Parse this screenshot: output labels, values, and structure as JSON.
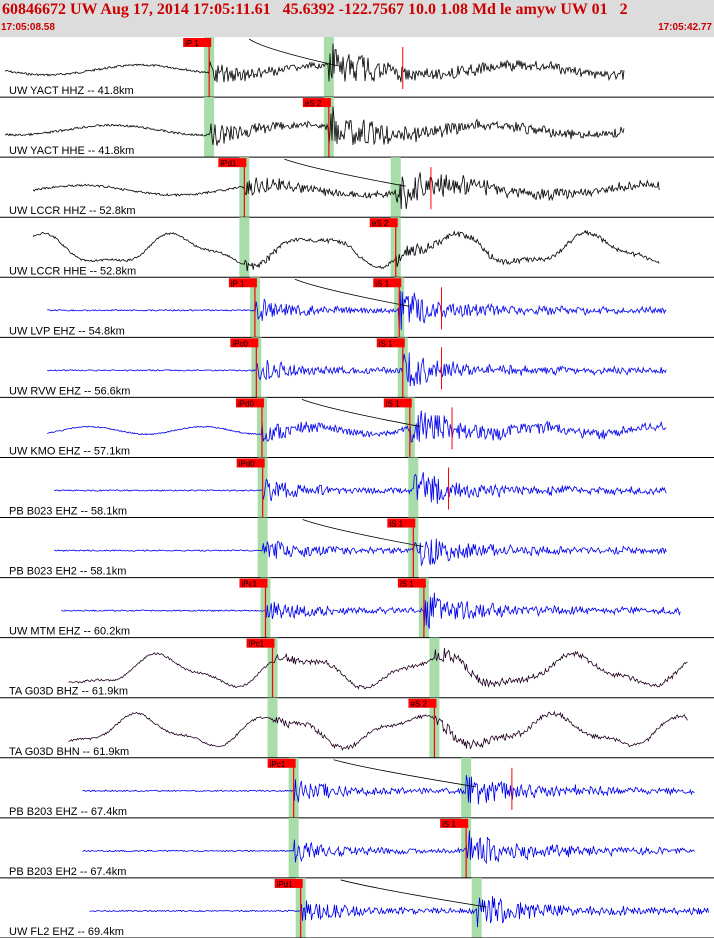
{
  "header": {
    "title": "60846672 UW Aug 17, 2014 17:05:11.61   45.6392 -122.7567 10.0 1.08 Md le amyw UW 01   2",
    "start_time": "17:05:08.58",
    "end_time": "17:05:42.77"
  },
  "chart_data": {
    "type": "line",
    "title": "60846672 UW Aug 17, 2014 17:05:11.61   45.6392 -122.7567 10.0 1.08 Md le amyw UW 01   2",
    "x_range": [
      "17:05:08.58",
      "17:05:42.77"
    ],
    "colors": {
      "velocity": "#0000ee",
      "broadband": "#220022",
      "pick": "#ff0000",
      "pick_window": "#a8dca8",
      "separator": "#000000"
    },
    "traces": [
      {
        "label": "UW YACT HHZ -- 41.8km",
        "color": "#000000",
        "kind": "bb",
        "start": 0.0,
        "end": 0.88,
        "p_time": 0.29,
        "s_time": 0.46,
        "picks": [
          {
            "label": "iP 1",
            "t": 0.29
          }
        ],
        "spikes": [
          0.565
        ]
      },
      {
        "label": "UW YACT HHE -- 41.8km",
        "color": "#000000",
        "kind": "bb",
        "start": 0.0,
        "end": 0.88,
        "p_time": 0.29,
        "s_time": 0.46,
        "picks": [
          {
            "label": "eS 2",
            "t": 0.46
          }
        ],
        "spikes": []
      },
      {
        "label": "UW LCCR HHZ -- 52.8km",
        "color": "#000000",
        "kind": "bb",
        "start": 0.04,
        "end": 0.93,
        "p_time": 0.34,
        "s_time": 0.555,
        "picks": [
          {
            "label": "iPd1",
            "t": 0.34
          }
        ],
        "spikes": [
          0.605
        ]
      },
      {
        "label": "UW LCCR HHE -- 52.8km",
        "color": "#000000",
        "kind": "lp",
        "start": 0.04,
        "end": 0.93,
        "p_time": 0.34,
        "s_time": 0.555,
        "picks": [
          {
            "label": "eS 2",
            "t": 0.555
          }
        ],
        "spikes": []
      },
      {
        "label": "UW LVP EHZ -- 54.8km",
        "color": "#0000ee",
        "kind": "sp",
        "start": 0.06,
        "end": 0.94,
        "p_time": 0.355,
        "s_time": 0.56,
        "picks": [
          {
            "label": "iP 1",
            "t": 0.355
          },
          {
            "label": "iS 1",
            "t": 0.56
          }
        ],
        "spikes": [
          0.62
        ]
      },
      {
        "label": "UW RVW EHZ -- 56.6km",
        "color": "#0000ee",
        "kind": "sp",
        "start": 0.06,
        "end": 0.94,
        "p_time": 0.357,
        "s_time": 0.565,
        "picks": [
          {
            "label": "iPc0",
            "t": 0.357
          },
          {
            "label": "iS 1",
            "t": 0.565
          }
        ],
        "spikes": [
          0.62
        ]
      },
      {
        "label": "UW KMO EHZ -- 57.1km",
        "color": "#0000ee",
        "kind": "sm",
        "start": 0.06,
        "end": 0.94,
        "p_time": 0.365,
        "s_time": 0.575,
        "picks": [
          {
            "label": "iPd0",
            "t": 0.365
          },
          {
            "label": "iS 1",
            "t": 0.575
          }
        ],
        "spikes": [
          0.635
        ]
      },
      {
        "label": "PB B023 EHZ -- 58.1km",
        "color": "#0000ee",
        "kind": "sp",
        "start": 0.07,
        "end": 0.94,
        "p_time": 0.366,
        "s_time": 0.58,
        "picks": [
          {
            "label": "iPd0",
            "t": 0.366
          }
        ],
        "spikes": [
          0.63
        ]
      },
      {
        "label": "PB B023 EH2 -- 58.1km",
        "color": "#0000ee",
        "kind": "sp",
        "start": 0.07,
        "end": 0.94,
        "p_time": 0.366,
        "s_time": 0.58,
        "picks": [
          {
            "label": "iS 1",
            "t": 0.58
          }
        ],
        "spikes": []
      },
      {
        "label": "UW MTM EHZ -- 60.2km",
        "color": "#0000ee",
        "kind": "sp",
        "start": 0.08,
        "end": 0.96,
        "p_time": 0.37,
        "s_time": 0.595,
        "picks": [
          {
            "label": "iPc1",
            "t": 0.37
          },
          {
            "label": "iS 1",
            "t": 0.595
          }
        ],
        "spikes": []
      },
      {
        "label": "TA G03D BHZ -- 61.9km",
        "color": "#220022",
        "kind": "lp",
        "start": 0.09,
        "end": 0.97,
        "p_time": 0.38,
        "s_time": 0.61,
        "picks": [
          {
            "label": "iPc1",
            "t": 0.38
          }
        ],
        "spikes": []
      },
      {
        "label": "TA G03D BHN -- 61.9km",
        "color": "#220022",
        "kind": "lp",
        "start": 0.09,
        "end": 0.97,
        "p_time": 0.38,
        "s_time": 0.61,
        "picks": [
          {
            "label": "eS 2",
            "t": 0.61
          }
        ],
        "spikes": []
      },
      {
        "label": "PB B203 EHZ -- 67.4km",
        "color": "#0000ee",
        "kind": "sp",
        "start": 0.11,
        "end": 0.98,
        "p_time": 0.41,
        "s_time": 0.655,
        "picks": [
          {
            "label": "iPc1",
            "t": 0.41
          }
        ],
        "spikes": [
          0.72
        ]
      },
      {
        "label": "PB B203 EH2 -- 67.4km",
        "color": "#0000ee",
        "kind": "sp",
        "start": 0.11,
        "end": 0.98,
        "p_time": 0.41,
        "s_time": 0.655,
        "picks": [
          {
            "label": "iS 1",
            "t": 0.655
          }
        ],
        "spikes": []
      },
      {
        "label": "UW FL2 EHZ -- 69.4km",
        "color": "#0000ee",
        "kind": "sp",
        "start": 0.12,
        "end": 1.0,
        "p_time": 0.42,
        "s_time": 0.67,
        "picks": [
          {
            "label": "iPd1",
            "t": 0.42
          }
        ],
        "spikes": []
      }
    ]
  }
}
